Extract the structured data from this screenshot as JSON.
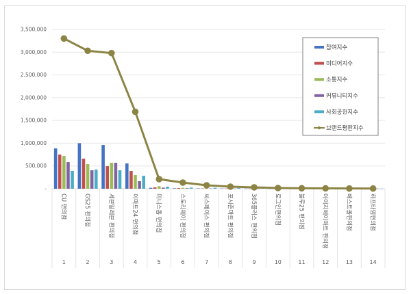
{
  "chart_data": {
    "type": "bar",
    "title": "",
    "xlabel": "",
    "ylabel": "",
    "ylim": [
      0,
      3500000
    ],
    "yticks": [
      "-",
      "500,000",
      "1,000,000",
      "1,500,000",
      "2,000,000",
      "2,500,000",
      "3,000,000",
      "3,500,000"
    ],
    "grid": true,
    "legend_position": "right-top",
    "category_numbers": [
      "1",
      "2",
      "3",
      "4",
      "5",
      "6",
      "7",
      "8",
      "9",
      "10",
      "11",
      "12",
      "13",
      "14"
    ],
    "categories": [
      "CU 편의점",
      "GS25 편의점",
      "세븐일레븐 편의점",
      "이마트24 편의점",
      "미니스톱 편의점",
      "스토리웨이 편의점",
      "씨스페이스 편의점",
      "포시즌마트 편의점",
      "365플러스 편의점",
      "로그인편의점",
      "블루25 편의점",
      "아이지에이마트 편의점",
      "베스트올편의점",
      "하프타임편의점"
    ],
    "series": [
      {
        "name": "참여지수",
        "type": "bar",
        "color": "#4472c4",
        "values": [
          885000,
          1000000,
          960000,
          555000,
          20000,
          10000,
          8000,
          5000,
          3000,
          2000,
          1500,
          1000,
          800,
          600
        ]
      },
      {
        "name": "미디어지수",
        "type": "bar",
        "color": "#c0504d",
        "values": [
          750000,
          660000,
          495000,
          390000,
          30000,
          15000,
          6000,
          4000,
          2500,
          1500,
          1200,
          900,
          700,
          500
        ]
      },
      {
        "name": "소통지수",
        "type": "bar",
        "color": "#9bbb59",
        "values": [
          720000,
          540000,
          570000,
          300000,
          55000,
          20000,
          8000,
          5000,
          3000,
          2000,
          1500,
          1000,
          800,
          600
        ]
      },
      {
        "name": "커뮤니티지수",
        "type": "bar",
        "color": "#8064a2",
        "values": [
          585000,
          405000,
          570000,
          165000,
          25000,
          12000,
          5000,
          3000,
          2000,
          1500,
          1000,
          800,
          600,
          400
        ]
      },
      {
        "name": "사회공헌지수",
        "type": "bar",
        "color": "#4bacc6",
        "values": [
          390000,
          420000,
          405000,
          285000,
          45000,
          25000,
          20000,
          15000,
          8000,
          5000,
          3000,
          2000,
          1500,
          1000
        ]
      },
      {
        "name": "브랜드평판지수",
        "type": "line",
        "color": "#8c8444",
        "values": [
          3300000,
          3030000,
          2980000,
          1690000,
          210000,
          135000,
          75000,
          45000,
          30000,
          15000,
          10000,
          8000,
          5000,
          4000
        ]
      }
    ]
  }
}
